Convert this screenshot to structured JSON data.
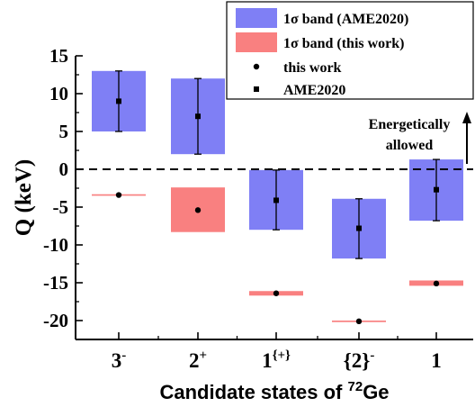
{
  "chart_data": {
    "type": "bar",
    "categories": [
      {
        "base": "3",
        "sup": "-"
      },
      {
        "base": "2",
        "sup": "+"
      },
      {
        "base": "1",
        "sup": "{+}"
      },
      {
        "base": "{2}",
        "sup": "-"
      },
      {
        "base": "1",
        "sup": ""
      }
    ],
    "ylabel": "Q (keV)",
    "xlabel": {
      "prefix": "Candidate states of ",
      "sup": "72",
      "suffix": "Ge"
    },
    "ylim": [
      -22.5,
      15
    ],
    "yticks": [
      15,
      10,
      5,
      0,
      -5,
      -10,
      -15,
      -20
    ],
    "reference_line": {
      "y": 0,
      "style": "dashed"
    },
    "annotation": {
      "line1": "Energetically",
      "line2": "allowed",
      "arrow": "up"
    },
    "legend": {
      "placement": "top-right",
      "entries": [
        {
          "label": "1σ band (AME2020)",
          "kind": "band",
          "color": "#7f7ff5"
        },
        {
          "label": "1σ band (this work)",
          "kind": "band",
          "color": "#f98080"
        },
        {
          "label": "this work",
          "kind": "dot"
        },
        {
          "label": "AME2020",
          "kind": "square"
        }
      ]
    },
    "colors": {
      "ame_band": "#7f7ff5",
      "this_work_band": "#f98080",
      "points": "#000000"
    },
    "series": [
      {
        "name": "AME2020",
        "values": [
          9.0,
          7.0,
          -4.1,
          -7.8,
          -2.7
        ],
        "band_low": [
          5.0,
          2.0,
          -8.0,
          -11.8,
          -6.8
        ],
        "band_high": [
          13.0,
          12.0,
          -0.1,
          -3.9,
          1.3
        ]
      },
      {
        "name": "this work",
        "values": [
          -3.4,
          -5.4,
          -16.4,
          -20.1,
          -15.1
        ],
        "band_low": [
          -3.5,
          -8.3,
          -16.7,
          -20.2,
          -15.4
        ],
        "band_high": [
          -3.3,
          -2.4,
          -16.1,
          -20.0,
          -14.7
        ]
      }
    ]
  }
}
